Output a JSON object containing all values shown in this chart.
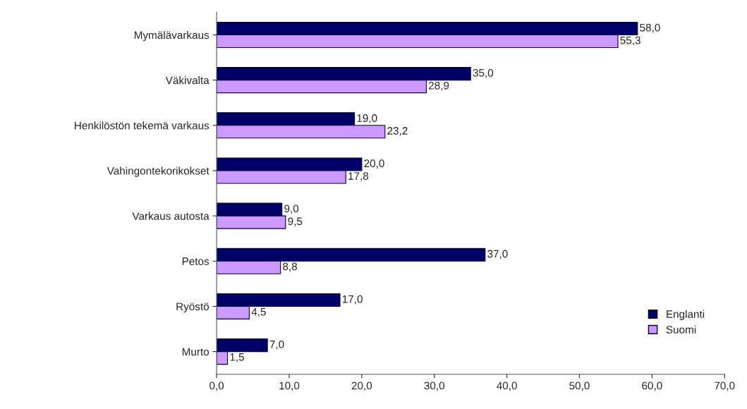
{
  "chart_data": {
    "type": "bar",
    "orientation": "horizontal",
    "categories": [
      "Mymälävarkaus",
      "Väkivalta",
      "Henkilöstön tekemä varkaus",
      "Vahingontekorikokset",
      "Varkaus autosta",
      "Petos",
      "Ryöstö",
      "Murto"
    ],
    "series": [
      {
        "name": "Englanti",
        "color": "#000066",
        "values": [
          58.0,
          35.0,
          19.0,
          20.0,
          9.0,
          37.0,
          17.0,
          7.0
        ],
        "value_labels": [
          "58,0",
          "35,0",
          "19,0",
          "20,0",
          "9,0",
          "37,0",
          "17,0",
          "7,0"
        ]
      },
      {
        "name": "Suomi",
        "color": "#cc99ff",
        "values": [
          55.3,
          28.9,
          23.2,
          17.8,
          9.5,
          8.8,
          4.5,
          1.5
        ],
        "value_labels": [
          "55,3",
          "28,9",
          "23,2",
          "17,8",
          "9,5",
          "8,8",
          "4,5",
          "1,5"
        ]
      }
    ],
    "xlim": [
      0,
      70
    ],
    "xticks": [
      {
        "value": 0,
        "label": "0,0"
      },
      {
        "value": 10,
        "label": "10,0"
      },
      {
        "value": 20,
        "label": "20,0"
      },
      {
        "value": 30,
        "label": "30,0"
      },
      {
        "value": 40,
        "label": "40,0"
      },
      {
        "value": 50,
        "label": "50,0"
      },
      {
        "value": 60,
        "label": "60,0"
      },
      {
        "value": 70,
        "label": "70,0"
      }
    ],
    "grid": false,
    "legend": "bottom right"
  }
}
